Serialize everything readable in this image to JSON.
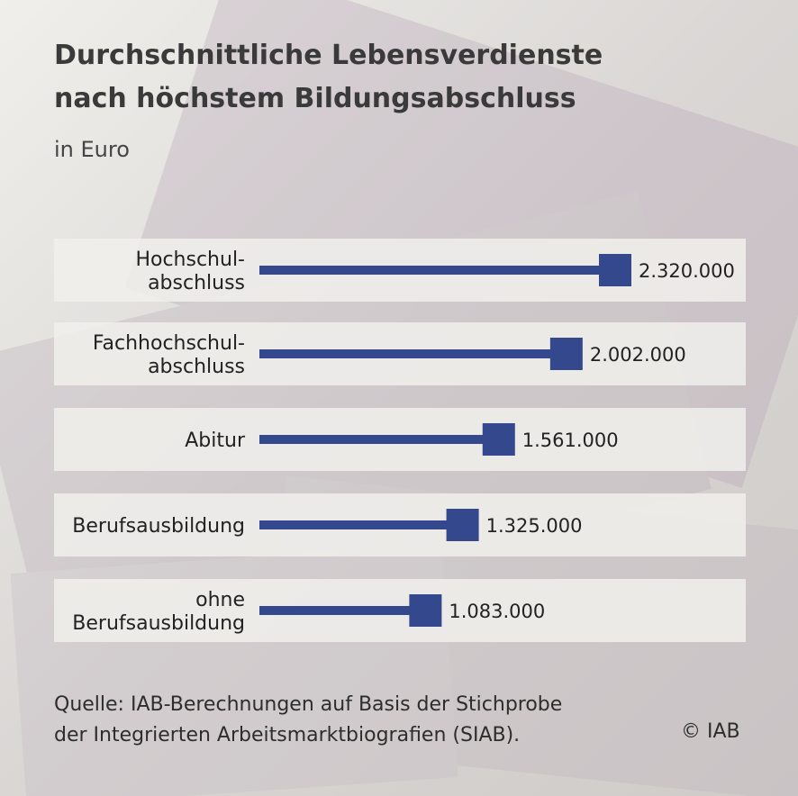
{
  "title": "Durchschnittliche Lebensverdienste\nnach höchstem Bildungsabschluss",
  "subtitle": "in Euro",
  "colors": {
    "bar": "#34488e",
    "row_bg": "#f1f0ec",
    "page_bg": "#e7e5e0"
  },
  "chart_data": {
    "type": "bar",
    "orientation": "horizontal",
    "categories": [
      "Hochschul-\nabschluss",
      "Fachhochschul-\nabschluss",
      "Abitur",
      "Berufsausbildung",
      "ohne\nBerufsausbildung"
    ],
    "values": [
      2320000,
      2002000,
      1561000,
      1325000,
      1083000
    ],
    "value_labels": [
      "2.320.000",
      "2.002.000",
      "1.561.000",
      "1.325.000",
      "1.083.000"
    ],
    "xlim": [
      0,
      2320000
    ]
  },
  "source": "Quelle: IAB-Berechnungen auf Basis der Stichprobe\nder Integrierten Arbeitsmarktbiografien (SIAB).",
  "copyright": "© IAB"
}
